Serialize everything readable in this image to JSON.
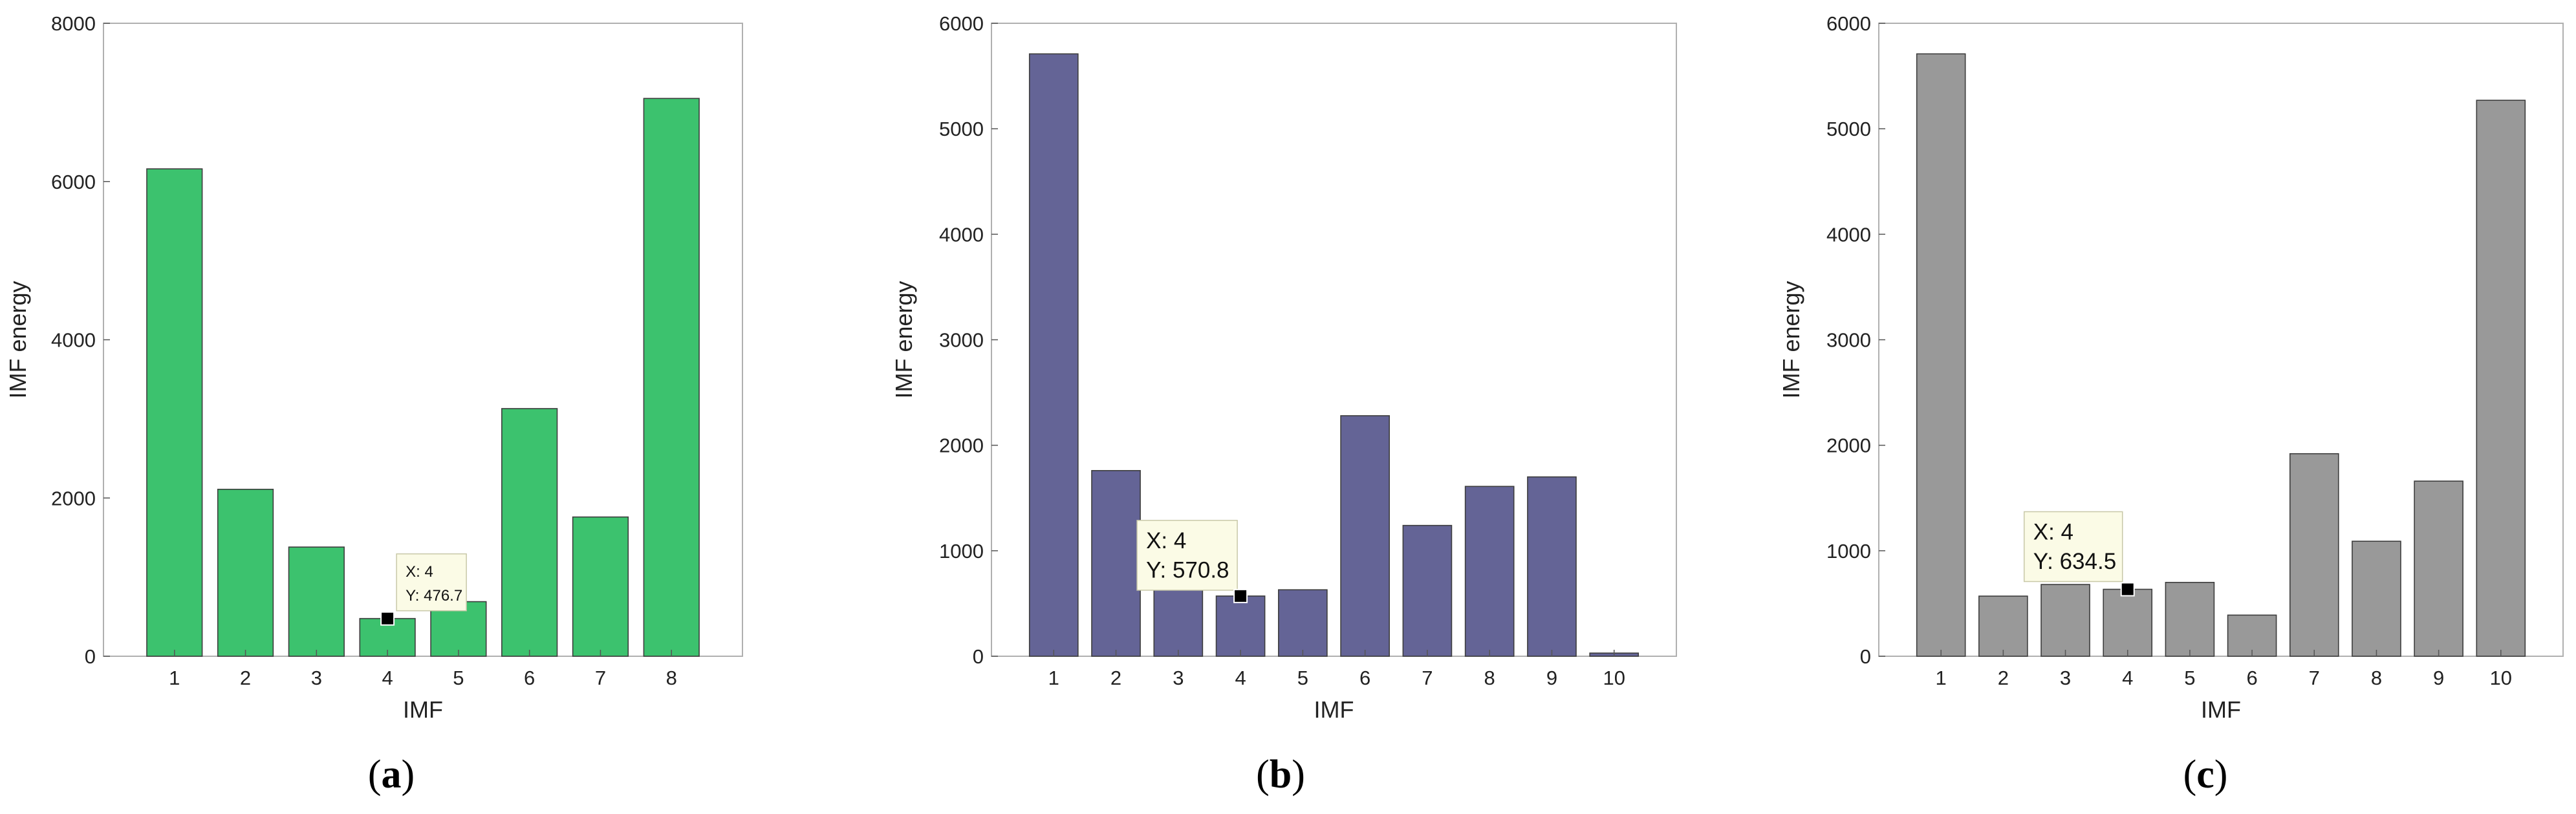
{
  "chart_data": [
    {
      "type": "bar",
      "panel_label": "a",
      "categories": [
        "1",
        "2",
        "3",
        "4",
        "5",
        "6",
        "7",
        "8"
      ],
      "values": [
        6160,
        2110,
        1380,
        476.7,
        690,
        3130,
        1760,
        7050
      ],
      "xlabel": "IMF",
      "ylabel": "IMF energy",
      "ylim": [
        0,
        8000
      ],
      "yticks": [
        "0",
        "2000",
        "4000",
        "6000",
        "8000"
      ],
      "bar_color": "#3cc26e",
      "grid": false,
      "datatip": {
        "index": 3,
        "x_text": "X: 4",
        "y_text": "Y: 476.7",
        "value": 476.7
      }
    },
    {
      "type": "bar",
      "panel_label": "b",
      "categories": [
        "1",
        "2",
        "3",
        "4",
        "5",
        "6",
        "7",
        "8",
        "9",
        "10"
      ],
      "values": [
        5710,
        1760,
        760,
        570.8,
        630,
        2280,
        1240,
        1610,
        1700,
        30
      ],
      "xlabel": "IMF",
      "ylabel": "IMF energy",
      "ylim": [
        0,
        6000
      ],
      "yticks": [
        "0",
        "1000",
        "2000",
        "3000",
        "4000",
        "5000",
        "6000"
      ],
      "bar_color": "#646496",
      "grid": false,
      "datatip": {
        "index": 3,
        "x_text": "X: 4",
        "y_text": "Y: 570.8",
        "value": 570.8
      }
    },
    {
      "type": "bar",
      "panel_label": "c",
      "categories": [
        "1",
        "2",
        "3",
        "4",
        "5",
        "6",
        "7",
        "8",
        "9",
        "10"
      ],
      "values": [
        5710,
        570,
        680,
        634.5,
        700,
        390,
        1920,
        1090,
        1660,
        5270
      ],
      "xlabel": "IMF",
      "ylabel": "IMF energy",
      "ylim": [
        0,
        6000
      ],
      "yticks": [
        "0",
        "1000",
        "2000",
        "3000",
        "4000",
        "5000",
        "6000"
      ],
      "bar_color": "#999999",
      "grid": false,
      "datatip": {
        "index": 3,
        "x_text": "X: 4",
        "y_text": "Y: 634.5",
        "value": 634.5
      }
    }
  ]
}
